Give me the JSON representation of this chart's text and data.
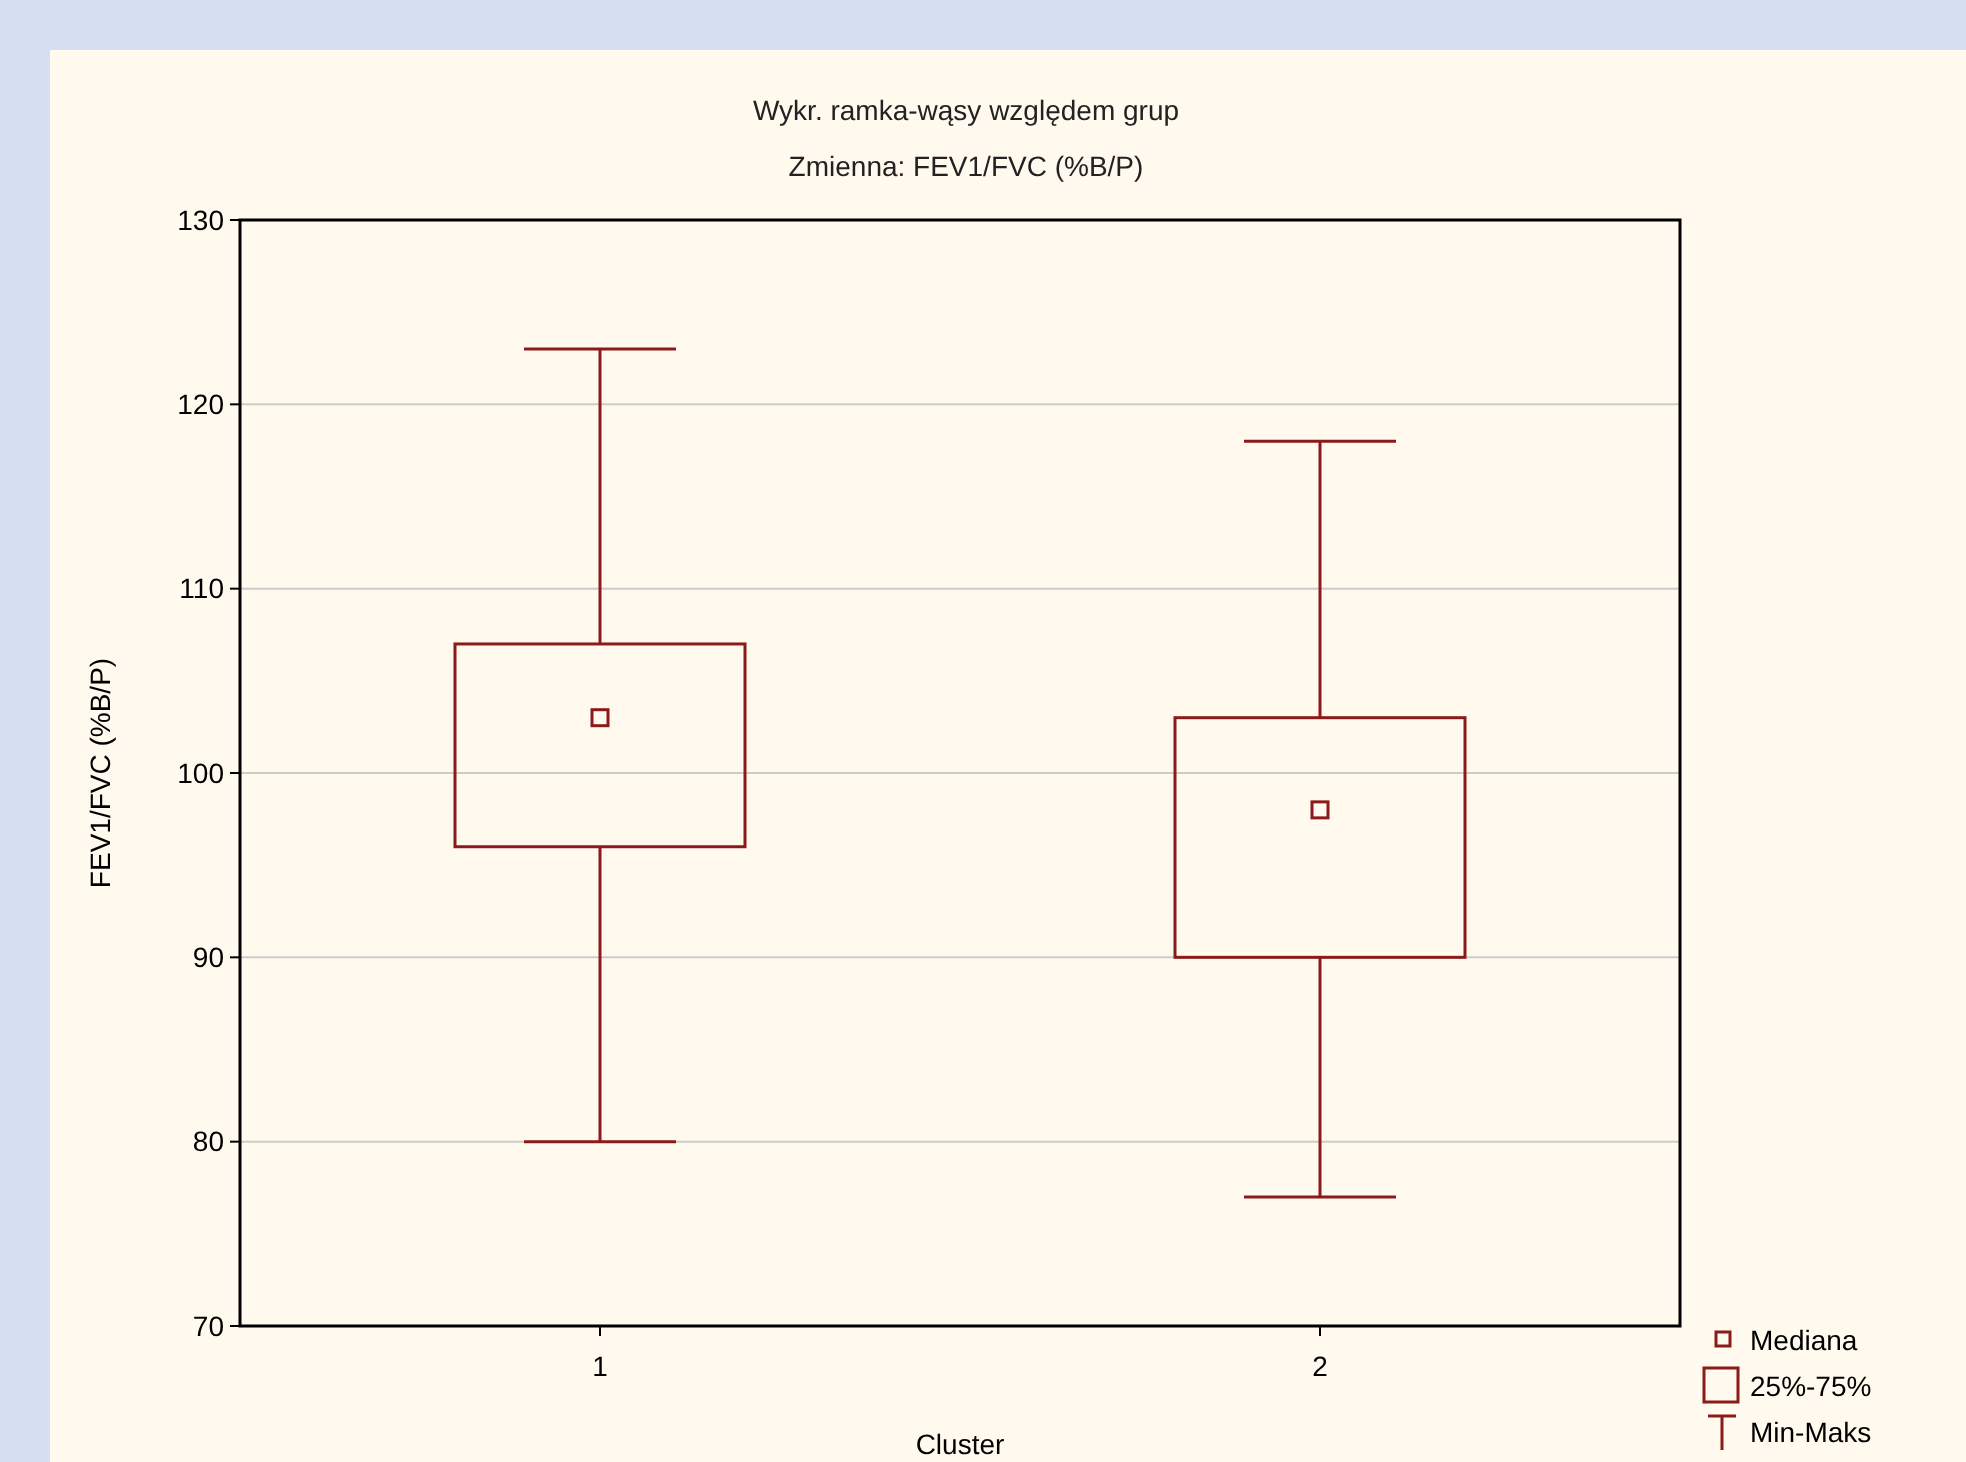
{
  "chart_data": {
    "type": "box",
    "title": "Wykr. ramka-wąsy względem grup",
    "subtitle": "Zmienna:  FEV1/FVC (%B/P)",
    "xlabel": "Cluster",
    "ylabel": "FEV1/FVC (%B/P)",
    "categories": [
      "1",
      "2"
    ],
    "boxes": [
      {
        "low": 80,
        "q1": 96,
        "median": 103,
        "q3": 107,
        "high": 123
      },
      {
        "low": 77,
        "q1": 90,
        "median": 98,
        "q3": 103,
        "high": 118
      }
    ],
    "color": "#8b1a1a",
    "ylim": [
      70,
      130
    ],
    "yticks": [
      70,
      80,
      90,
      100,
      110,
      120,
      130
    ],
    "grid": "y",
    "annotations": [
      "Mediana",
      "25%-75%",
      "Min-Maks"
    ]
  }
}
